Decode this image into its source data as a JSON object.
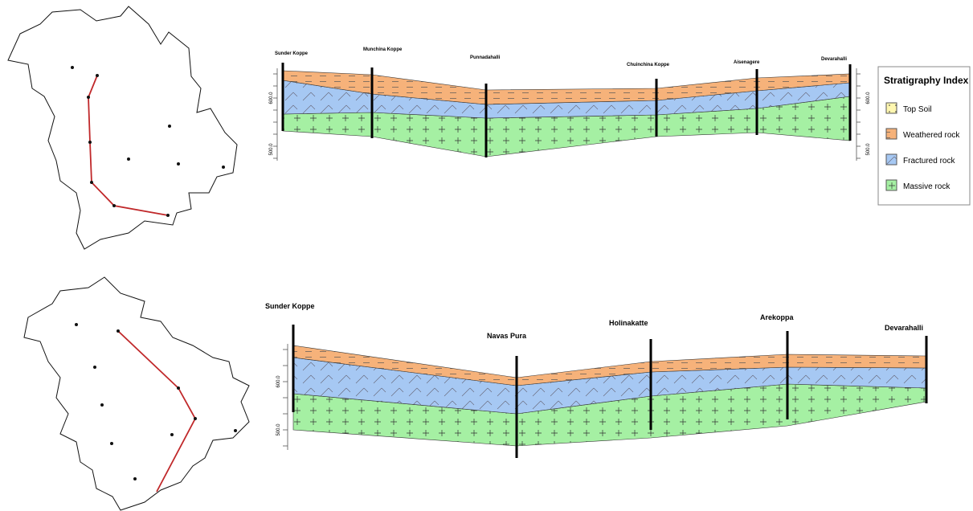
{
  "legend": {
    "title": "Stratigraphy Index",
    "items": [
      "Top Soil",
      "Weathered rock",
      "Fractured rock",
      "Massive rock"
    ]
  },
  "sections": [
    {
      "boreholes": [
        "Sunder Koppe",
        "Munchina Koppe",
        "Punnadahalli",
        "Chuinchina Koppe",
        "Aisenagere",
        "Devarahalli"
      ],
      "left_axis": [
        "600.0",
        "500.0"
      ],
      "right_axis": [
        "600.0",
        "500.0"
      ]
    },
    {
      "boreholes": [
        "Sunder Koppe",
        "Navas Pura",
        "Holinakatte",
        "Arekoppa",
        "Devarahalli"
      ],
      "left_axis": [
        "600.0",
        "500.0"
      ]
    }
  ]
}
